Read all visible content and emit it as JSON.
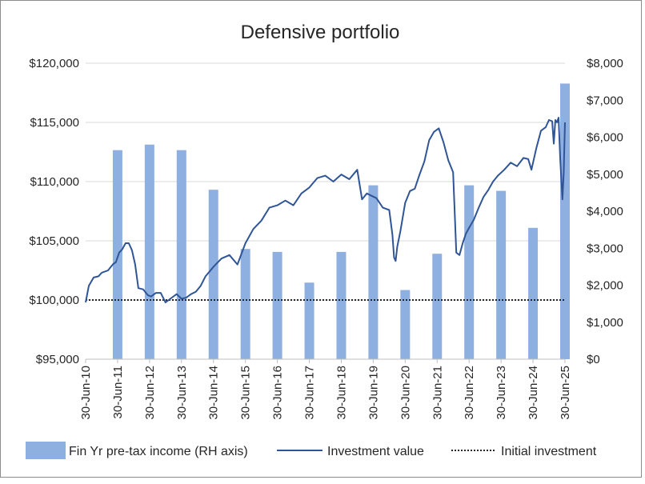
{
  "chart_data": {
    "type": "bar+line",
    "title": "Defensive portfolio",
    "x_categories": [
      "30-Jun-10",
      "30-Jun-11",
      "30-Jun-12",
      "30-Jun-13",
      "30-Jun-14",
      "30-Jun-15",
      "30-Jun-16",
      "30-Jun-17",
      "30-Jun-18",
      "30-Jun-19",
      "30-Jun-20",
      "30-Jun-21",
      "30-Jun-22",
      "30-Jun-23",
      "30-Jun-24",
      "30-Jun-25"
    ],
    "left_axis": {
      "ylim": [
        95000,
        120000
      ],
      "ticks": [
        95000,
        100000,
        105000,
        110000,
        115000,
        120000
      ],
      "tick_labels": [
        "$95,000",
        "$100,000",
        "$105,000",
        "$110,000",
        "$115,000",
        "$120,000"
      ]
    },
    "right_axis": {
      "ylim": [
        0,
        8000
      ],
      "ticks": [
        0,
        1000,
        2000,
        3000,
        4000,
        5000,
        6000,
        7000,
        8000
      ],
      "tick_labels": [
        "$0",
        "$1,000",
        "$2,000",
        "$3,000",
        "$4,000",
        "$5,000",
        "$6,000",
        "$7,000",
        "$8,000"
      ]
    },
    "gridlines": true,
    "legend_position": "bottom",
    "colors": {
      "bar": "#8eb0e0",
      "line": "#2f5597",
      "reference": "#262626",
      "grid": "#d9d9d9"
    },
    "series": [
      {
        "name": "Fin Yr pre-tax income (RH axis)",
        "kind": "bar",
        "axis": "right",
        "categories": [
          "30-Jun-11",
          "30-Jun-12",
          "30-Jun-13",
          "30-Jun-14",
          "30-Jun-15",
          "30-Jun-16",
          "30-Jun-17",
          "30-Jun-18",
          "30-Jun-19",
          "30-Jun-20",
          "30-Jun-21",
          "30-Jun-22",
          "30-Jun-23",
          "30-Jun-24",
          "30-Jun-25"
        ],
        "values": [
          5650,
          5800,
          5650,
          4580,
          2980,
          2900,
          2070,
          2900,
          4700,
          1870,
          2850,
          4700,
          4550,
          3550,
          7450
        ]
      },
      {
        "name": "Investment value",
        "kind": "line",
        "axis": "left",
        "x": [
          2010.5,
          2010.6,
          2010.75,
          2010.9,
          2011.0,
          2011.2,
          2011.35,
          2011.45,
          2011.55,
          2011.65,
          2011.75,
          2011.85,
          2011.95,
          2012.05,
          2012.15,
          2012.3,
          2012.45,
          2012.55,
          2012.7,
          2012.85,
          2013.0,
          2013.2,
          2013.35,
          2013.5,
          2013.65,
          2013.8,
          2013.95,
          2014.1,
          2014.25,
          2014.5,
          2014.75,
          2015.0,
          2015.25,
          2015.5,
          2015.75,
          2016.0,
          2016.25,
          2016.5,
          2016.75,
          2017.0,
          2017.25,
          2017.5,
          2017.75,
          2018.0,
          2018.25,
          2018.5,
          2018.75,
          2019.0,
          2019.15,
          2019.3,
          2019.45,
          2019.6,
          2019.8,
          2020.0,
          2020.1,
          2020.15,
          2020.2,
          2020.25,
          2020.35,
          2020.5,
          2020.65,
          2020.8,
          2020.95,
          2021.1,
          2021.25,
          2021.4,
          2021.55,
          2021.7,
          2021.85,
          2022.0,
          2022.1,
          2022.2,
          2022.3,
          2022.4,
          2022.5,
          2022.65,
          2022.8,
          2022.95,
          2023.1,
          2023.25,
          2023.4,
          2023.6,
          2023.8,
          2024.0,
          2024.2,
          2024.35,
          2024.45,
          2024.6,
          2024.75,
          2024.9,
          2025.0,
          2025.1,
          2025.15,
          2025.2,
          2025.25,
          2025.3,
          2025.35,
          2025.42,
          2025.46,
          2025.5
        ],
        "y": [
          99800,
          101200,
          101900,
          102000,
          102300,
          102500,
          103000,
          103200,
          104000,
          104300,
          104800,
          104800,
          104200,
          103000,
          101000,
          100900,
          100400,
          100300,
          100600,
          100600,
          99800,
          100200,
          100500,
          100100,
          100200,
          100500,
          100700,
          101200,
          102000,
          102800,
          103500,
          103800,
          103000,
          104800,
          106000,
          106700,
          107800,
          108000,
          108400,
          108000,
          109000,
          109500,
          110300,
          110500,
          110000,
          110600,
          110200,
          111000,
          108500,
          109000,
          108800,
          108600,
          107800,
          107600,
          105500,
          103600,
          103300,
          104500,
          105800,
          108200,
          109200,
          109400,
          110600,
          111700,
          113500,
          114200,
          114500,
          113300,
          111800,
          110800,
          104000,
          103800,
          104800,
          105600,
          106100,
          106800,
          107800,
          108700,
          109300,
          110000,
          110500,
          111000,
          111600,
          111300,
          112000,
          111900,
          111000,
          112800,
          114300,
          114600,
          115200,
          115100,
          113200,
          115200,
          115000,
          115400,
          112000,
          108500,
          110700,
          115000
        ]
      },
      {
        "name": "Initial investment",
        "kind": "reference_line",
        "axis": "left",
        "value": 100000
      }
    ]
  }
}
